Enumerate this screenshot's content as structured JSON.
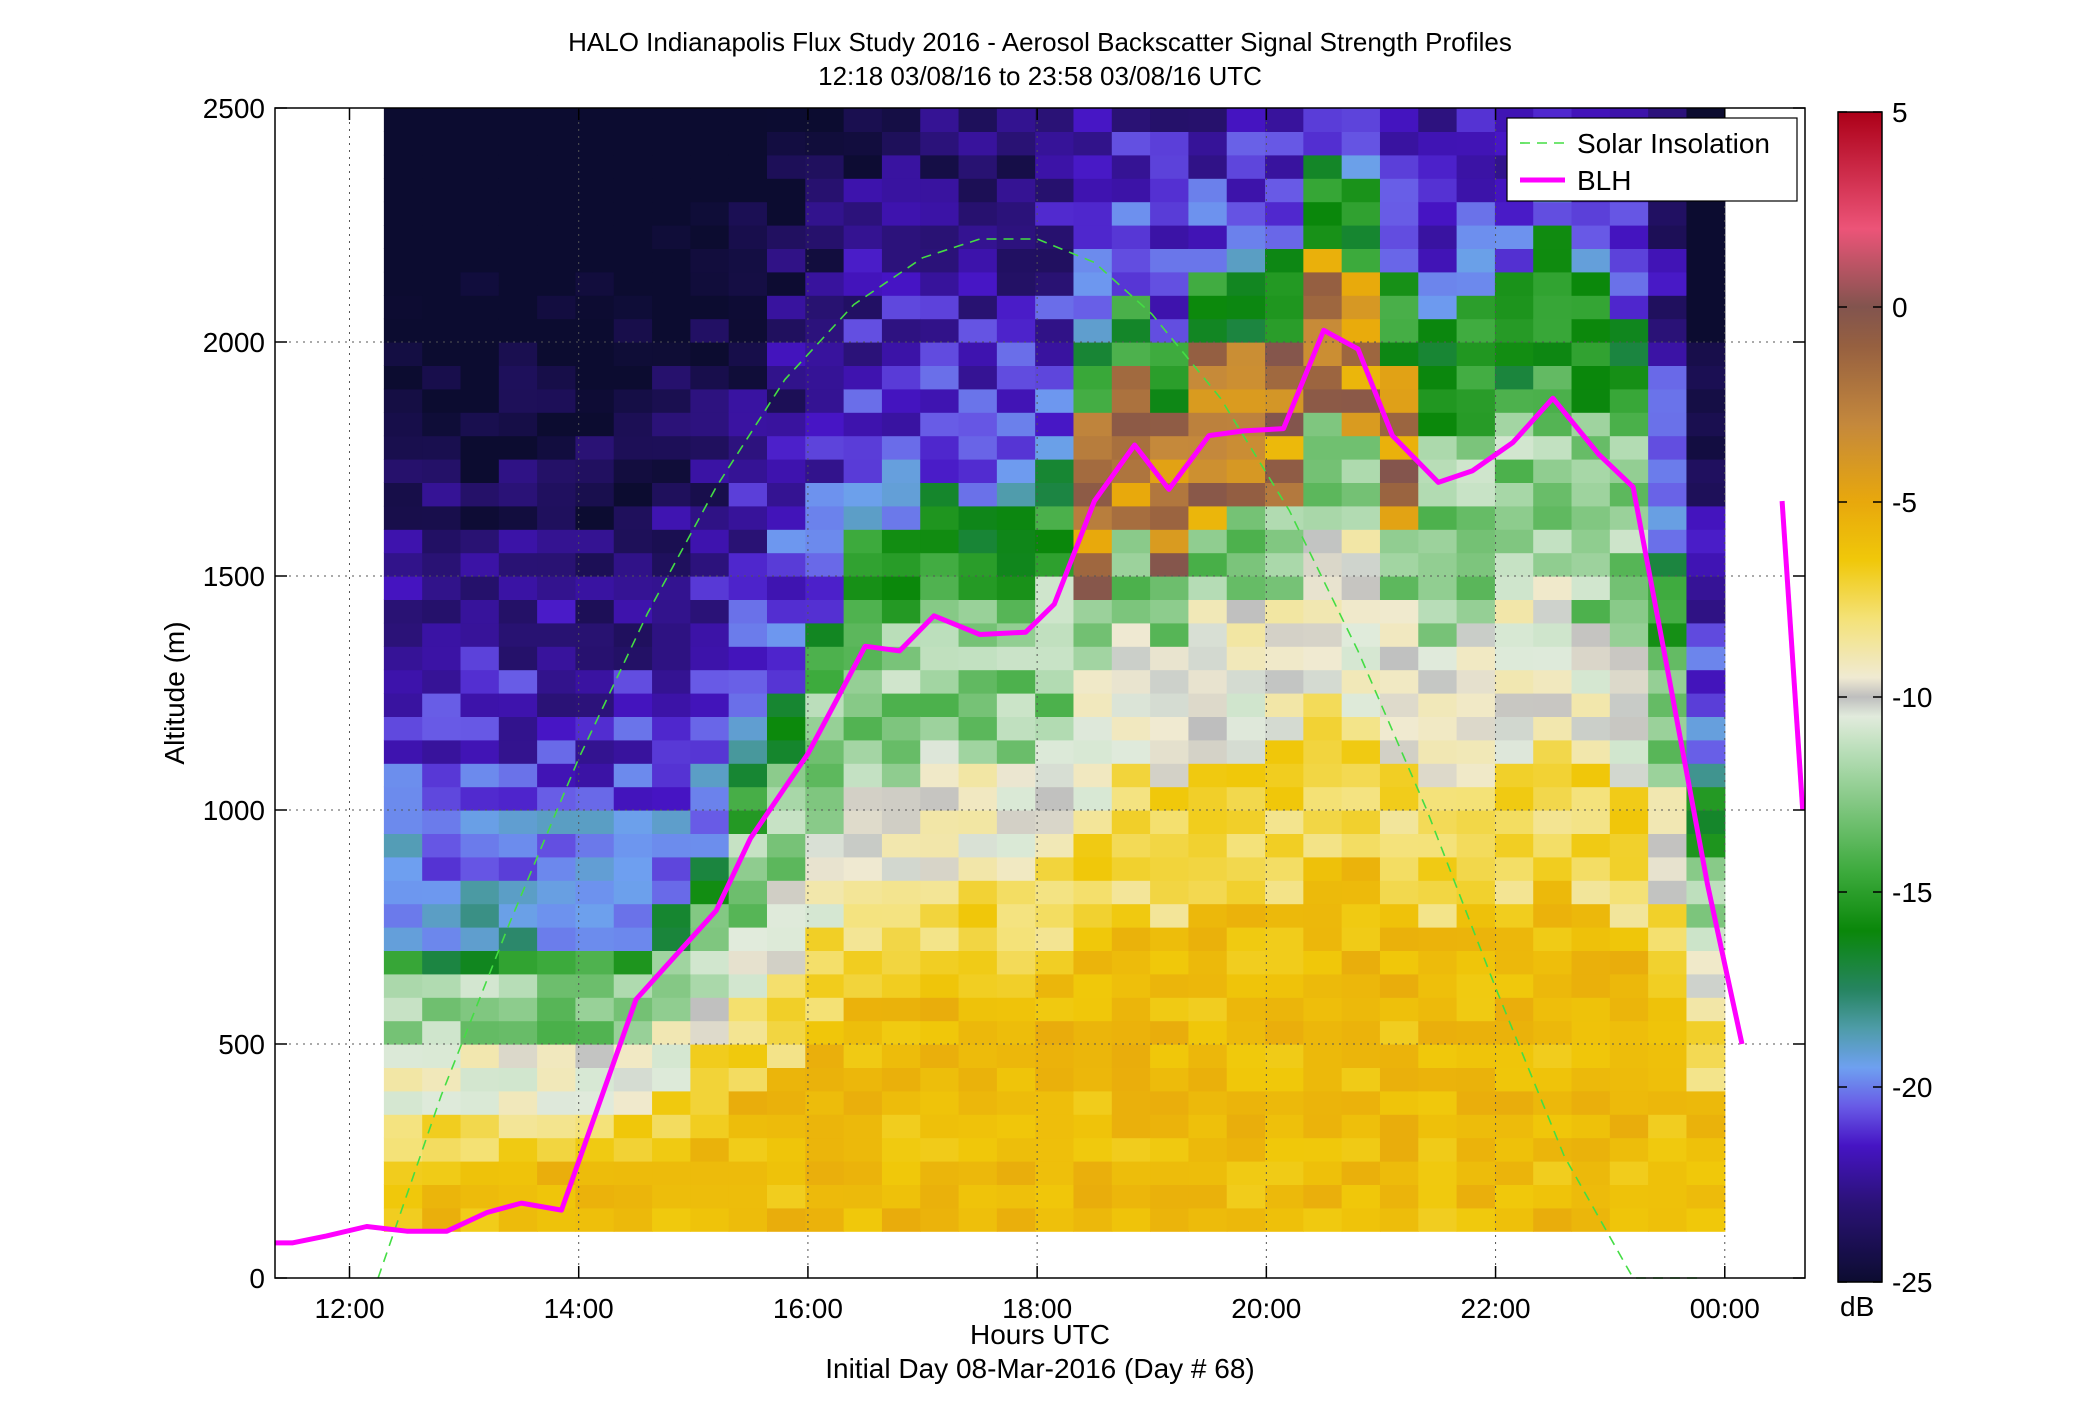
{
  "chart_data": {
    "type": "heatmap",
    "title": "HALO Indianapolis Flux Study 2016 - Aerosol Backscatter Signal Strength Profiles",
    "subtitle": "12:18 03/08/16 to 23:58 03/08/16  UTC",
    "xlabel": "Hours UTC",
    "xlabel2": "Initial Day 08-Mar-2016 (Day # 68)",
    "ylabel": "Altitude (m)",
    "xlim": [
      11.35,
      24.7
    ],
    "ylim": [
      0,
      2500
    ],
    "x_ticks": [
      12,
      14,
      16,
      18,
      20,
      22,
      24
    ],
    "x_tick_labels": [
      "12:00",
      "14:00",
      "16:00",
      "18:00",
      "20:00",
      "22:00",
      "00:00"
    ],
    "y_ticks": [
      0,
      500,
      1000,
      1500,
      2000,
      2500
    ],
    "y_tick_labels": [
      "0",
      "500",
      "1000",
      "1500",
      "2000",
      "2500"
    ],
    "grid": true,
    "legend_position": "top-right",
    "colorbar": {
      "unit": "dB",
      "range": [
        -25,
        5
      ],
      "ticks": [
        5,
        0,
        -5,
        -10,
        -15,
        -20,
        -25
      ],
      "tick_labels": [
        "5",
        "0",
        "-5",
        "-10",
        "-15",
        "-20",
        "-25"
      ]
    },
    "heatmap": {
      "x_start": 12.3,
      "x_end": 24.0,
      "y_start": 100,
      "y_end": 2500,
      "n_cols": 35,
      "n_rows": 48
    },
    "series": [
      {
        "name": "Solar Insolation",
        "style": "dashed",
        "color": "#44dd44",
        "x": [
          12.25,
          12.8,
          13.4,
          14.0,
          14.6,
          15.2,
          15.8,
          16.4,
          17.0,
          17.5,
          18.0,
          18.5,
          19.0,
          19.6,
          20.2,
          20.8,
          21.4,
          22.0,
          22.6,
          23.2,
          23.8
        ],
        "y": [
          0,
          390,
          760,
          1110,
          1420,
          1690,
          1920,
          2080,
          2180,
          2220,
          2220,
          2170,
          2060,
          1880,
          1640,
          1340,
          1000,
          620,
          260,
          0,
          0
        ]
      },
      {
        "name": "BLH",
        "style": "solid",
        "color": "#ff00ff",
        "x": [
          11.35,
          11.5,
          11.8,
          12.15,
          12.5,
          12.85,
          13.2,
          13.5,
          13.85,
          14.5,
          15.2,
          15.5,
          16.0,
          16.5,
          16.8,
          17.1,
          17.5,
          17.9,
          18.15,
          18.5,
          18.85,
          19.15,
          19.5,
          19.8,
          20.15,
          20.5,
          20.8,
          21.1,
          21.5,
          21.8,
          22.15,
          22.5,
          22.9,
          23.2,
          23.5,
          23.85,
          24.15,
          24.5,
          24.68
        ],
        "y": [
          75,
          75,
          90,
          110,
          100,
          100,
          140,
          160,
          145,
          595,
          785,
          940,
          1120,
          1350,
          1340,
          1415,
          1375,
          1380,
          1440,
          1660,
          1780,
          1685,
          1800,
          1810,
          1815,
          2025,
          1985,
          1800,
          1700,
          1725,
          1785,
          1880,
          1760,
          1690,
          1300,
          840,
          500,
          1660,
          1000
        ]
      }
    ]
  }
}
